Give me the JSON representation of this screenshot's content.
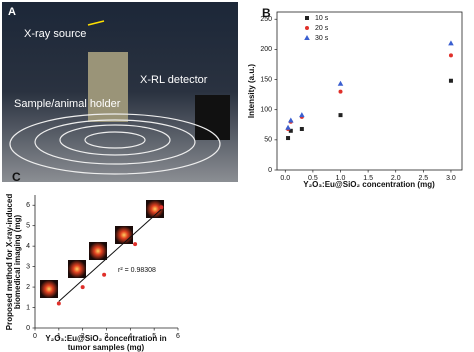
{
  "photo": {
    "label": "A",
    "texts": [
      "X-ray source",
      "X-RL detector",
      "Sample/animal holder"
    ]
  },
  "chart_data": [
    {
      "type": "scatter",
      "label": "B",
      "ylabel": "Intensity (a.u.)",
      "xlabel": "Y₂O₃:Eu@SiO₂ concentration (mg)",
      "x": [
        0.05,
        0.1,
        0.3,
        1,
        3
      ],
      "series": [
        {
          "name": "10 s",
          "color": "#222222",
          "marker": "square",
          "values": [
            53,
            65,
            68,
            91,
            148
          ]
        },
        {
          "name": "20 s",
          "color": "#e0302a",
          "marker": "circle",
          "values": [
            68,
            80,
            88,
            130,
            190
          ]
        },
        {
          "name": "30 s",
          "color": "#3a5fd0",
          "marker": "triangle",
          "values": [
            70,
            82,
            91,
            143,
            210
          ]
        }
      ],
      "xlim": [
        -0.15,
        3.2
      ],
      "ylim": [
        0,
        262
      ],
      "xticks": [
        {
          "value": 0,
          "label": "0.0"
        },
        {
          "value": 0.5,
          "label": "0.5"
        },
        {
          "value": 1,
          "label": "1.0"
        },
        {
          "value": 1.5,
          "label": "1.5"
        },
        {
          "value": 2,
          "label": "2.0"
        },
        {
          "value": 2.5,
          "label": "2.5"
        },
        {
          "value": 3,
          "label": "3.0"
        }
      ],
      "yticks": [
        0,
        50,
        100,
        150,
        200,
        250
      ],
      "legend": "upper left",
      "frame": true
    },
    {
      "type": "scatter",
      "label": "C",
      "ylabel": [
        "Proposed method for X-ray-induced",
        "biomedical imaging (mg)"
      ],
      "xlabel": [
        "Y₂O₃:Eu@SiO₂ concentration in",
        "tumor samples (mg)"
      ],
      "x": [
        1.0,
        2.0,
        2.9,
        4.2,
        5.3
      ],
      "series": [
        {
          "color": "#e0302a",
          "marker": "circle",
          "values": [
            1.2,
            2.0,
            2.6,
            4.1,
            5.9
          ]
        }
      ],
      "fit_line": {
        "x": [
          1,
          5.3
        ],
        "y": [
          1.3,
          5.8
        ]
      },
      "annotation": "r² = 0.98308",
      "xlim": [
        0,
        6
      ],
      "ylim": [
        0,
        6.5
      ],
      "xticks": [
        0,
        1,
        2,
        3,
        4,
        5,
        6
      ],
      "yticks": [
        0,
        1,
        2,
        3,
        4,
        5,
        6
      ],
      "frame": false
    }
  ]
}
